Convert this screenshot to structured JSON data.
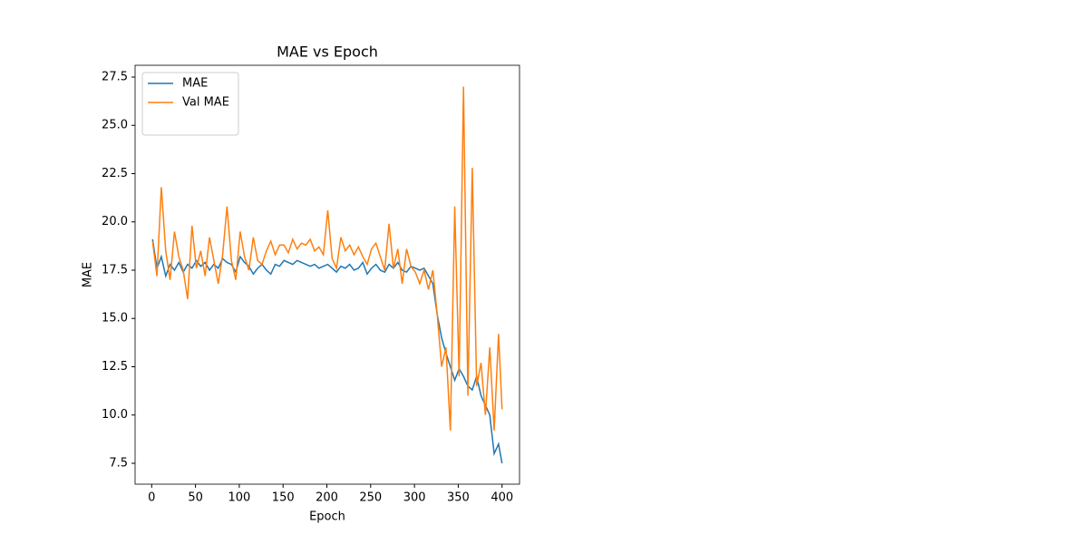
{
  "chart_data": {
    "type": "line",
    "title": "MAE vs Epoch",
    "x_label": "Epoch",
    "y_label": "MAE",
    "x": [
      1,
      6,
      11,
      16,
      21,
      26,
      31,
      36,
      41,
      46,
      51,
      56,
      61,
      66,
      71,
      76,
      81,
      86,
      91,
      96,
      101,
      106,
      111,
      116,
      121,
      126,
      131,
      136,
      141,
      146,
      151,
      156,
      161,
      166,
      171,
      176,
      181,
      186,
      191,
      196,
      201,
      206,
      211,
      216,
      221,
      226,
      231,
      236,
      241,
      246,
      251,
      256,
      261,
      266,
      271,
      276,
      281,
      286,
      291,
      296,
      301,
      306,
      311,
      316,
      321,
      326,
      331,
      336,
      341,
      346,
      351,
      356,
      361,
      366,
      371,
      376,
      381,
      386,
      391,
      396,
      400
    ],
    "series": [
      {
        "name": "MAE",
        "color": "#1f77b4",
        "values": [
          19.1,
          17.6,
          18.2,
          17.2,
          17.8,
          17.5,
          17.9,
          17.4,
          17.8,
          17.6,
          18.0,
          17.7,
          17.9,
          17.5,
          17.8,
          17.6,
          18.1,
          17.9,
          17.8,
          17.4,
          18.2,
          17.9,
          17.7,
          17.3,
          17.6,
          17.8,
          17.5,
          17.3,
          17.8,
          17.7,
          18.0,
          17.9,
          17.8,
          18.0,
          17.9,
          17.8,
          17.7,
          17.8,
          17.6,
          17.7,
          17.8,
          17.6,
          17.4,
          17.7,
          17.6,
          17.8,
          17.5,
          17.6,
          17.9,
          17.3,
          17.6,
          17.8,
          17.5,
          17.4,
          17.8,
          17.6,
          17.9,
          17.5,
          17.4,
          17.7,
          17.6,
          17.5,
          17.6,
          17.2,
          16.8,
          15.2,
          14.0,
          13.2,
          12.5,
          11.8,
          12.4,
          12.0,
          11.5,
          11.3,
          12.0,
          11.0,
          10.5,
          10.0,
          8.0,
          8.5,
          7.5
        ]
      },
      {
        "name": "Val MAE",
        "color": "#ff7f0e",
        "values": [
          19.0,
          17.2,
          21.8,
          18.5,
          17.0,
          19.5,
          18.2,
          17.5,
          16.0,
          19.8,
          17.6,
          18.5,
          17.2,
          19.2,
          18.0,
          16.8,
          18.3,
          20.8,
          18.0,
          17.0,
          19.5,
          18.2,
          17.5,
          19.2,
          18.0,
          17.8,
          18.5,
          19.0,
          18.3,
          18.8,
          18.8,
          18.4,
          19.1,
          18.6,
          18.9,
          18.8,
          19.1,
          18.5,
          18.7,
          18.3,
          20.6,
          18.1,
          17.6,
          19.2,
          18.5,
          18.8,
          18.3,
          18.7,
          18.2,
          17.8,
          18.6,
          18.9,
          18.2,
          17.5,
          19.9,
          17.6,
          18.6,
          16.8,
          18.6,
          17.7,
          17.4,
          16.8,
          17.5,
          16.5,
          17.5,
          15.2,
          12.5,
          13.5,
          9.2,
          20.8,
          12.0,
          27.0,
          11.0,
          22.8,
          11.5,
          12.7,
          10.0,
          13.5,
          9.2,
          14.2,
          10.3
        ]
      }
    ],
    "xlim": [
      -18.95,
      419.95
    ],
    "ylim": [
      6.42,
      28.11
    ],
    "xticks": [
      0,
      50,
      100,
      150,
      200,
      250,
      300,
      350,
      400
    ],
    "yticks": [
      7.5,
      {
        "value": 10,
        "label": "10.0"
      },
      12.5,
      {
        "value": 15,
        "label": "15.0"
      },
      17.5,
      {
        "value": 20,
        "label": "20.0"
      },
      22.5,
      {
        "value": 25,
        "label": "25.0"
      },
      27.5
    ],
    "legend": "upper left",
    "grid": false
  }
}
